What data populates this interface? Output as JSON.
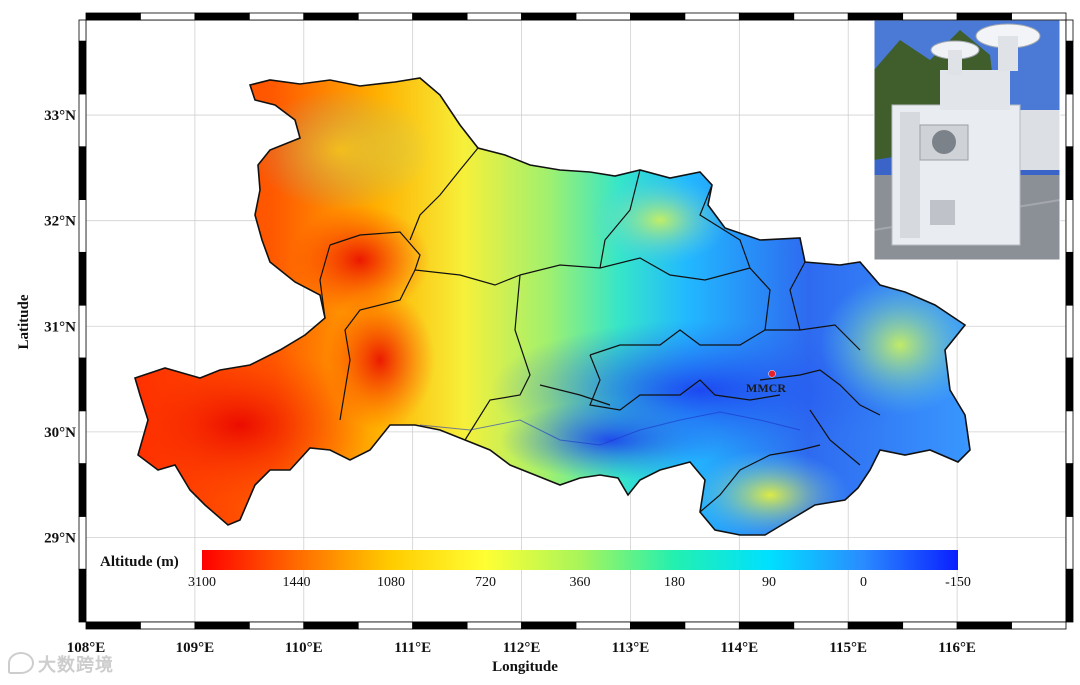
{
  "map": {
    "region": "Hubei Province",
    "x_axis_title": "Longitude",
    "y_axis_title": "Latitude",
    "lon_range": [
      108,
      117
    ],
    "lat_range": [
      28.2,
      33.9
    ],
    "lon_ticks": [
      "108°E",
      "109°E",
      "110°E",
      "111°E",
      "112°E",
      "113°E",
      "114°E",
      "115°E",
      "116°E"
    ],
    "lat_ticks": [
      "29°N",
      "30°N",
      "31°N",
      "32°N",
      "33°N"
    ],
    "lon_tick_values": [
      108,
      109,
      110,
      111,
      112,
      113,
      114,
      115,
      116
    ],
    "lat_tick_values": [
      29,
      30,
      31,
      32,
      33
    ],
    "gridlines": true,
    "frame_style": "alternating black-white border"
  },
  "colorbar": {
    "title": "Altitude (m)",
    "labels": [
      "3100",
      "1440",
      "1080",
      "720",
      "360",
      "180",
      "90",
      "0",
      "-150"
    ],
    "colors": [
      "#ff0000",
      "#ff6a00",
      "#ffcc00",
      "#ffff33",
      "#a8f55a",
      "#22f0b0",
      "#00e0ff",
      "#2a8bff",
      "#0a1fff"
    ],
    "placement": "bottom-left inside map"
  },
  "station": {
    "label": "MMCR",
    "lon": 114.3,
    "lat": 30.55,
    "marker_color": "#e8202a"
  },
  "inset_photo": {
    "placement": "top-right",
    "subject": "radar instrument cabin"
  },
  "watermark": {
    "text": "大数跨境"
  }
}
